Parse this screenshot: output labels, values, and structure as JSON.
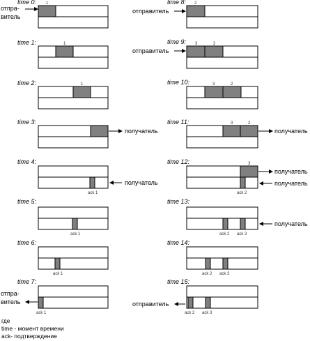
{
  "times": [
    "time 0:",
    "time 1:",
    "time 2:",
    "time 3:",
    "time 4:",
    "time 5:",
    "time 6:",
    "time 7:",
    "time 8:",
    "time 9:",
    "time 10:",
    "time 11:",
    "time 12:",
    "time 13:",
    "time 14:",
    "time 15:"
  ],
  "labels": {
    "sender": "отправитель",
    "sender_line1": "отпра-",
    "sender_line2": "витель",
    "receiver": "получатель"
  },
  "packets": {
    "p1": "1",
    "p2": "2",
    "p3": "3"
  },
  "acks": {
    "a1": "ack 1",
    "a2": "ack 2",
    "a3": "ack 3"
  },
  "legend": {
    "where": "где",
    "time": "time - момент времени",
    "ack": "ack- подтверждение"
  },
  "colors": {
    "packet": "#808080",
    "line": "#000000",
    "background": "#ffffff"
  }
}
